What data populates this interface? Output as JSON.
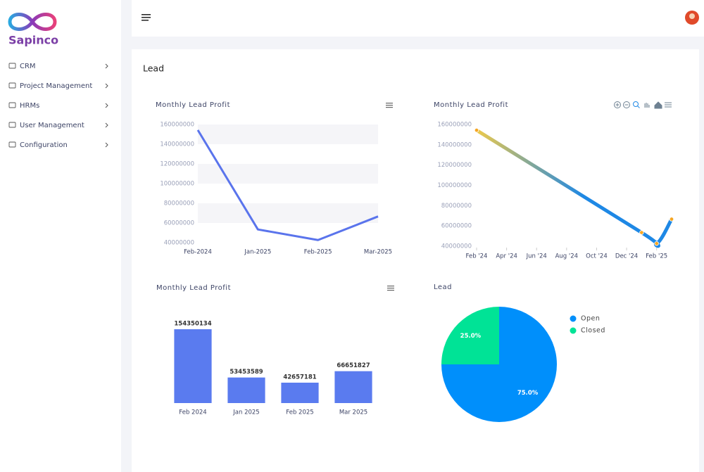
{
  "sidebar": {
    "brand": "Sapinco",
    "menu": [
      "CRM",
      "Project Management",
      "HRMs",
      "User Management",
      "Configuration"
    ]
  },
  "page_title": "Lead",
  "chart_data": [
    {
      "type": "line",
      "title": "Monthly Lead Profit",
      "categories": [
        "Feb-2024",
        "Jan-2025",
        "Feb-2025",
        "Mar-2025"
      ],
      "values": [
        154350134,
        53453589,
        42657181,
        66651827
      ],
      "color": "#5a74ec",
      "ylim": [
        40000000,
        160000000
      ],
      "yticks": [
        40000000,
        60000000,
        80000000,
        100000000,
        120000000,
        140000000,
        160000000
      ],
      "grid": true
    },
    {
      "type": "curve",
      "title": "Monthly Lead Profit",
      "x": [
        "2024-02",
        "2025-01",
        "2025-02",
        "2025-03"
      ],
      "values": [
        154350134,
        53453589,
        42657181,
        66651827
      ],
      "color": "#1e88e5",
      "gradient_from": "#ecc94b",
      "marker_color": "#f5a623",
      "xlim": [
        "2024-02",
        "2025-03"
      ],
      "xticks": [
        {
          "value": "2024-02",
          "label": "Feb '24"
        },
        {
          "value": "2024-04",
          "label": "Apr '24"
        },
        {
          "value": "2024-06",
          "label": "Jun '24"
        },
        {
          "value": "2024-08",
          "label": "Aug '24"
        },
        {
          "value": "2024-10",
          "label": "Oct '24"
        },
        {
          "value": "2024-12",
          "label": "Dec '24"
        },
        {
          "value": "2025-02",
          "label": "Feb '25"
        }
      ],
      "ylim": [
        40000000,
        160000000
      ],
      "yticks": [
        40000000,
        60000000,
        80000000,
        100000000,
        120000000,
        140000000,
        160000000
      ]
    },
    {
      "type": "bar",
      "title": "Monthly Lead Profit",
      "categories": [
        "Feb 2024",
        "Jan 2025",
        "Feb 2025",
        "Mar 2025"
      ],
      "values": [
        154350134,
        53453589,
        42657181,
        66651827
      ],
      "color": "#5a7bef",
      "ylim": [
        0,
        200000000
      ]
    },
    {
      "type": "pie",
      "title": "Lead",
      "categories": [
        "Open",
        "Closed"
      ],
      "values": [
        75,
        25
      ],
      "value_labels": [
        "75.0%",
        "25.0%"
      ],
      "colors": [
        "#008ffb",
        "#00e396"
      ],
      "legend": "right"
    }
  ]
}
